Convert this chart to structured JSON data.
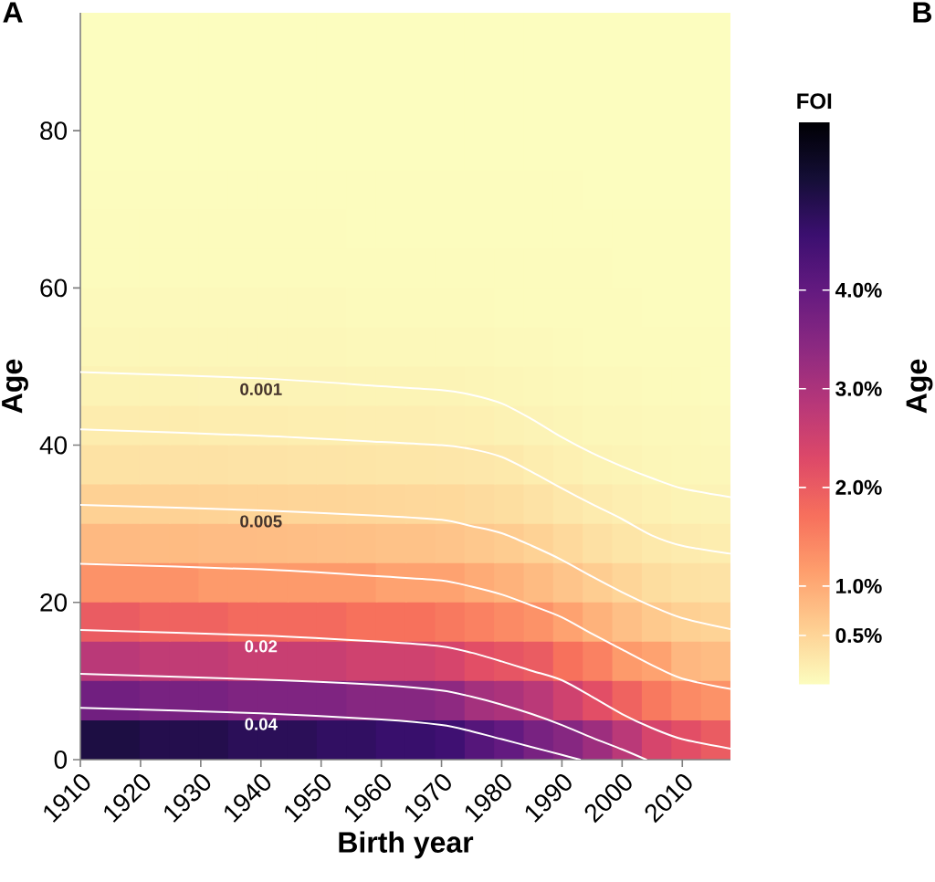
{
  "chart_data": [
    {
      "type": "heatmap",
      "clabel": "FOI",
      "categories": [
        null,
        null,
        null,
        null,
        null,
        null,
        null,
        null,
        null,
        null,
        null,
        null,
        null,
        null,
        null,
        null,
        null,
        null,
        null,
        null,
        null,
        null
      ],
      "y_categories": [
        null,
        null,
        null,
        null,
        null,
        null,
        null,
        null,
        null,
        null,
        null,
        null,
        null,
        null,
        null,
        null,
        null,
        null,
        null
      ],
      "clim": [
        0,
        5.7
      ],
      "cticks": [
        {
          "value": 0.5,
          "label": "0.5%"
        },
        {
          "value": 1,
          "label": "1.0%"
        },
        {
          "value": 2,
          "label": "2.0%"
        },
        {
          "value": 3,
          "label": "3.0%"
        },
        {
          "value": 4,
          "label": "4.0%"
        }
      ],
      "cells": [
        [
          0,
          0,
          0,
          0,
          0,
          0,
          0,
          0,
          0,
          0,
          0,
          0,
          0,
          0,
          0,
          0,
          0,
          0,
          0,
          0,
          0,
          0
        ],
        [
          0,
          0,
          0,
          0,
          0,
          0,
          0,
          0,
          0,
          0,
          0,
          0,
          0,
          0,
          0,
          0,
          0,
          0,
          0,
          0,
          0,
          0
        ],
        [
          0,
          0,
          0,
          0,
          0,
          0,
          0,
          0,
          0,
          0,
          0,
          0,
          0,
          0,
          0,
          0,
          0,
          0,
          0,
          0,
          0,
          0
        ],
        [
          0,
          0,
          0,
          0,
          0,
          0,
          0,
          0,
          0,
          0,
          0,
          0,
          0,
          0,
          0,
          0,
          0,
          0,
          0,
          0,
          0,
          0
        ],
        [
          0.01,
          0.01,
          0.01,
          0.01,
          0.01,
          0.01,
          0.01,
          0.01,
          0.01,
          0.01,
          0.01,
          0.01,
          0.01,
          0.01,
          0.01,
          0.01,
          0.01,
          0,
          0,
          0,
          0,
          0
        ],
        [
          0.02,
          0.02,
          0.02,
          0.02,
          0.02,
          0.02,
          0.02,
          0.02,
          0.02,
          0.01,
          0.01,
          0.01,
          0.01,
          0.01,
          0.01,
          0.01,
          0.01,
          0.01,
          0.01,
          0.01,
          0.01,
          0.01
        ],
        [
          0.03,
          0.03,
          0.03,
          0.03,
          0.03,
          0.03,
          0.03,
          0.03,
          0.03,
          0.02,
          0.02,
          0.02,
          0.02,
          0.02,
          0.02,
          0.02,
          0.02,
          0.02,
          0.01,
          0.01,
          0.01,
          0.01
        ],
        [
          0.05,
          0.05,
          0.05,
          0.05,
          0.05,
          0.05,
          0.05,
          0.05,
          0.05,
          0.04,
          0.04,
          0.04,
          0.04,
          0.04,
          0.03,
          0.03,
          0.02,
          0.02,
          0.02,
          0.01,
          0.01,
          0.01
        ],
        [
          0.08,
          0.08,
          0.08,
          0.08,
          0.08,
          0.08,
          0.08,
          0.08,
          0.07,
          0.06,
          0.06,
          0.06,
          0.06,
          0.06,
          0.05,
          0.05,
          0.04,
          0.03,
          0.03,
          0.02,
          0.02,
          0.02
        ],
        [
          0.13,
          0.13,
          0.13,
          0.13,
          0.12,
          0.12,
          0.12,
          0.12,
          0.12,
          0.11,
          0.11,
          0.11,
          0.11,
          0.1,
          0.09,
          0.08,
          0.06,
          0.05,
          0.05,
          0.04,
          0.04,
          0.03
        ],
        [
          0.21,
          0.21,
          0.21,
          0.21,
          0.2,
          0.2,
          0.2,
          0.19,
          0.19,
          0.18,
          0.18,
          0.18,
          0.17,
          0.16,
          0.14,
          0.12,
          0.1,
          0.08,
          0.07,
          0.06,
          0.06,
          0.05
        ],
        [
          0.34,
          0.34,
          0.33,
          0.33,
          0.33,
          0.32,
          0.32,
          0.31,
          0.31,
          0.3,
          0.29,
          0.29,
          0.28,
          0.27,
          0.25,
          0.2,
          0.16,
          0.13,
          0.11,
          0.09,
          0.08,
          0.08
        ],
        [
          0.54,
          0.54,
          0.53,
          0.53,
          0.52,
          0.51,
          0.51,
          0.5,
          0.49,
          0.48,
          0.47,
          0.46,
          0.45,
          0.42,
          0.39,
          0.33,
          0.27,
          0.22,
          0.18,
          0.15,
          0.13,
          0.12
        ],
        [
          0.83,
          0.82,
          0.81,
          0.81,
          0.79,
          0.79,
          0.78,
          0.77,
          0.76,
          0.75,
          0.73,
          0.72,
          0.7,
          0.65,
          0.6,
          0.53,
          0.44,
          0.36,
          0.3,
          0.25,
          0.22,
          0.2
        ],
        [
          1.3,
          1.3,
          1.3,
          1.3,
          1.2,
          1.2,
          1.2,
          1.2,
          1.2,
          1.2,
          1.1,
          1.1,
          1.1,
          1.0,
          0.92,
          0.81,
          0.7,
          0.59,
          0.49,
          0.4,
          0.35,
          0.33
        ],
        [
          2.0,
          2.0,
          1.9,
          1.9,
          1.9,
          1.8,
          1.8,
          1.8,
          1.8,
          1.7,
          1.7,
          1.7,
          1.6,
          1.5,
          1.4,
          1.3,
          1.1,
          0.92,
          0.76,
          0.64,
          0.56,
          0.52
        ],
        [
          2.8,
          2.8,
          2.7,
          2.7,
          2.7,
          2.6,
          2.6,
          2.6,
          2.6,
          2.5,
          2.5,
          2.5,
          2.4,
          2.2,
          2.1,
          2.0,
          1.7,
          1.5,
          1.2,
          1.1,
          0.85,
          0.8
        ],
        [
          3.8,
          3.8,
          3.7,
          3.7,
          3.7,
          3.6,
          3.6,
          3.6,
          3.6,
          3.5,
          3.5,
          3.5,
          3.4,
          3.1,
          3.0,
          2.8,
          2.5,
          2.2,
          1.9,
          1.6,
          1.4,
          1.3
        ],
        [
          5.0,
          5.0,
          4.9,
          4.9,
          4.9,
          4.8,
          4.8,
          4.8,
          4.7,
          4.7,
          4.6,
          4.6,
          4.5,
          4.2,
          4.0,
          3.7,
          3.5,
          3.2,
          2.8,
          2.4,
          2.2,
          2.0
        ]
      ]
    },
    {
      "type": "line",
      "xlabel": "Birth year",
      "ylabel": "Age",
      "annotations": [
        "A",
        "B",
        "Age"
      ],
      "xlim": [
        1910,
        2018
      ],
      "ylim": [
        0,
        95
      ],
      "xticks": [
        1910,
        1920,
        1930,
        1940,
        1950,
        1960,
        1970,
        1980,
        1990,
        2000,
        2010
      ],
      "yticks": [
        0,
        20,
        40,
        60,
        80
      ],
      "series": [
        {
          "type": "line",
          "name": "0.001",
          "color": "#ffffff",
          "x": [
            1910,
            1940,
            1960,
            1970,
            1975,
            1980,
            1985,
            1990,
            1995,
            2000,
            2005,
            2010,
            2018
          ],
          "values": [
            49.3,
            48.5,
            47.5,
            47.0,
            46.4,
            45.3,
            43.3,
            41.0,
            39.0,
            37.3,
            35.8,
            34.5,
            33.4
          ]
        },
        {
          "type": "line",
          "color": "#ffffff",
          "x": [
            1910,
            1940,
            1960,
            1970,
            1975,
            1980,
            1985,
            1990,
            1995,
            2000,
            2005,
            2010,
            2018
          ],
          "values": [
            42.0,
            41.2,
            40.4,
            40.0,
            39.5,
            38.5,
            36.6,
            34.5,
            32.5,
            30.6,
            28.5,
            27.2,
            26.2
          ]
        },
        {
          "type": "line",
          "name": "0.005",
          "color": "#ffffff",
          "x": [
            1910,
            1940,
            1960,
            1970,
            1975,
            1980,
            1985,
            1990,
            1995,
            2000,
            2005,
            2010,
            2018
          ],
          "values": [
            32.4,
            31.7,
            31.0,
            30.5,
            29.7,
            28.8,
            27.2,
            25.4,
            23.3,
            21.3,
            19.5,
            18.0,
            16.6
          ]
        },
        {
          "type": "line",
          "color": "#ffffff",
          "x": [
            1910,
            1940,
            1960,
            1970,
            1975,
            1980,
            1985,
            1990,
            1995,
            2000,
            2005,
            2010,
            2018
          ],
          "values": [
            24.9,
            24.2,
            23.3,
            22.8,
            22.0,
            21.0,
            19.6,
            18.1,
            16.0,
            14.0,
            12.0,
            10.3,
            9.0
          ]
        },
        {
          "type": "line",
          "name": "0.02",
          "color": "#ffffff",
          "x": [
            1910,
            1940,
            1960,
            1970,
            1975,
            1980,
            1985,
            1990,
            1995,
            2000,
            2005,
            2010,
            2018
          ],
          "values": [
            16.5,
            15.8,
            15.0,
            14.4,
            13.6,
            12.5,
            11.3,
            10.1,
            8.0,
            5.8,
            4.0,
            2.6,
            1.4
          ]
        },
        {
          "type": "line",
          "color": "#ffffff",
          "x": [
            1910,
            1940,
            1960,
            1970,
            1975,
            1980,
            1985,
            1990,
            1995,
            2000,
            2004
          ],
          "values": [
            10.9,
            10.2,
            9.5,
            8.8,
            8.0,
            7.0,
            5.8,
            4.4,
            2.8,
            1.3,
            0
          ]
        },
        {
          "type": "line",
          "name": "0.04",
          "color": "#ffffff",
          "x": [
            1910,
            1940,
            1960,
            1970,
            1975,
            1980,
            1985,
            1990,
            1993
          ],
          "values": [
            6.6,
            5.9,
            5.1,
            4.4,
            3.6,
            2.6,
            1.6,
            0.6,
            0
          ]
        }
      ]
    }
  ]
}
